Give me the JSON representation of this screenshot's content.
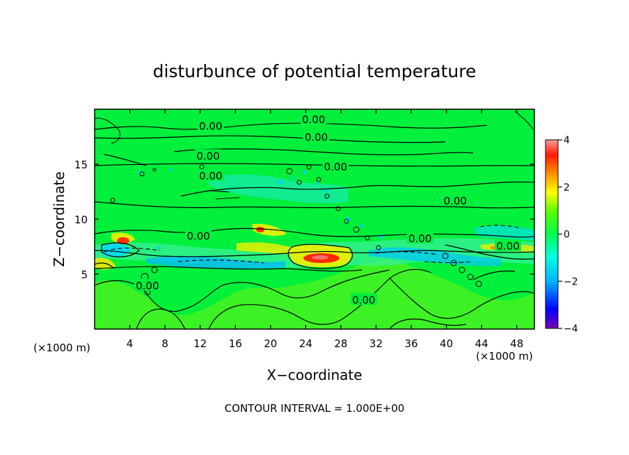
{
  "chart_data": {
    "type": "heatmap",
    "title": "disturbunce of potential temperature",
    "xlabel": "X−coordinate",
    "ylabel": "Z−coordinate",
    "x_unit_left": "(×1000 m)",
    "x_unit_right": "(×1000 m)",
    "footer": "CONTOUR INTERVAL = 1.000E+00",
    "xlim": [
      0,
      50
    ],
    "ylim": [
      0,
      20
    ],
    "x_ticks": [
      4,
      8,
      12,
      16,
      20,
      24,
      28,
      32,
      36,
      40,
      44,
      48
    ],
    "y_ticks": [
      5,
      10,
      15
    ],
    "colorbar": {
      "range": [
        -4,
        4
      ],
      "ticks": [
        4,
        2,
        0,
        -2,
        -4
      ],
      "colors": [
        "#7a00b0",
        "#0000ff",
        "#00b4ff",
        "#00ffe0",
        "#00ff4c",
        "#5aff00",
        "#ffff00",
        "#ff9000",
        "#ff1a00",
        "#ff9a9a"
      ]
    },
    "contour_labels": [
      {
        "text": "0.00",
        "x": 13.2,
        "y": 18.5
      },
      {
        "text": "0.00",
        "x": 24.9,
        "y": 19.1
      },
      {
        "text": "0.00",
        "x": 25.2,
        "y": 17.5
      },
      {
        "text": "0.00",
        "x": 12.9,
        "y": 15.8
      },
      {
        "text": "0.00",
        "x": 27.4,
        "y": 14.8
      },
      {
        "text": "0.00",
        "x": 13.2,
        "y": 14.0
      },
      {
        "text": "0.00",
        "x": 41.0,
        "y": 11.7
      },
      {
        "text": "0.00",
        "x": 11.8,
        "y": 8.5
      },
      {
        "text": "0.00",
        "x": 37.0,
        "y": 8.3
      },
      {
        "text": "0.00",
        "x": 47.0,
        "y": 7.6
      },
      {
        "text": "0.00",
        "x": 6.0,
        "y": 4.0
      },
      {
        "text": "0.00",
        "x": 30.6,
        "y": 2.7
      }
    ],
    "features": [
      {
        "value": 3.5,
        "x": 25.8,
        "y": 6.5
      },
      {
        "value": 3.0,
        "x": 3.3,
        "y": 8.0
      },
      {
        "value": 3.0,
        "x": 18.8,
        "y": 8.9
      },
      {
        "value": 1.5,
        "x": 1.5,
        "y": 5.8
      },
      {
        "value": -1.5,
        "x": 4.0,
        "y": 7.2
      },
      {
        "value": -1.2,
        "x": 16.0,
        "y": 6.5
      },
      {
        "value": -1.0,
        "x": 34.0,
        "y": 7.0
      }
    ]
  }
}
